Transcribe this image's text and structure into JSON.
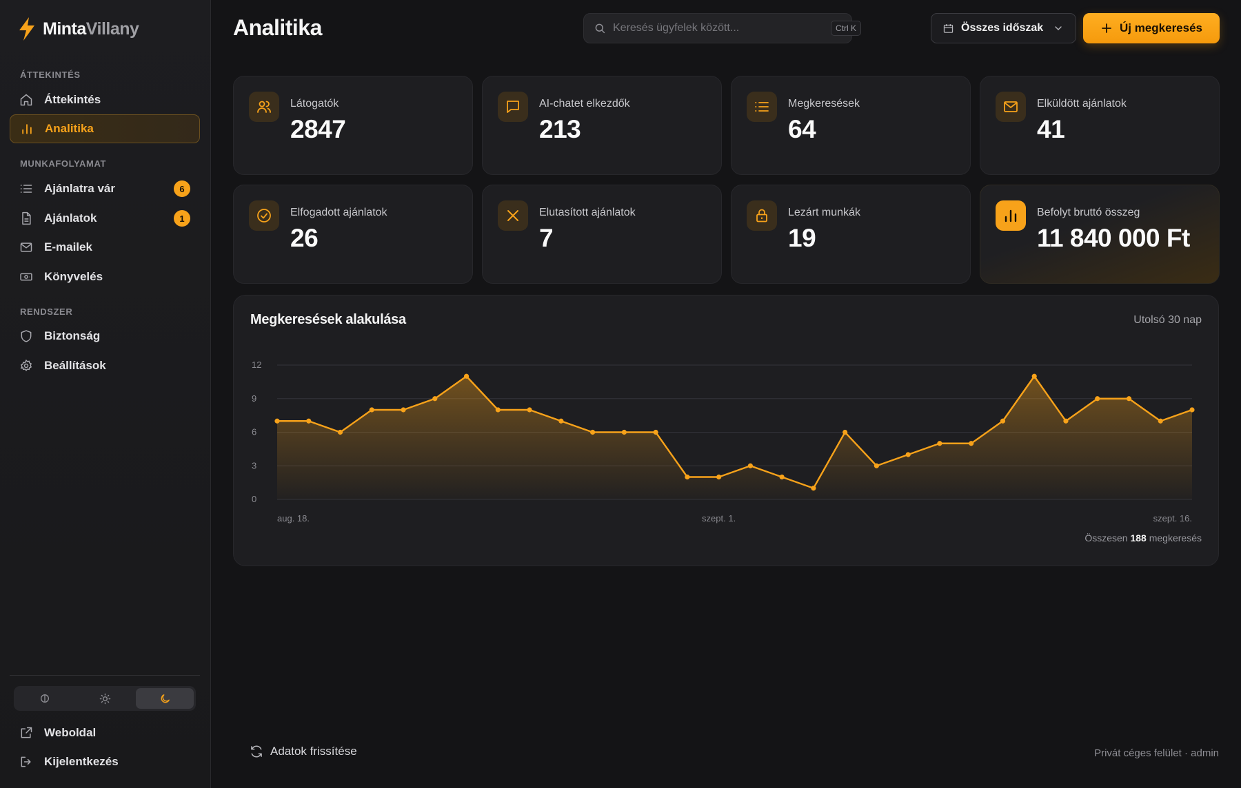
{
  "brand": {
    "part1": "Minta",
    "part2": "Villany"
  },
  "sidebar": {
    "sections": [
      {
        "title": "ÁTTEKINTÉS"
      },
      {
        "title": "MUNKAFOLYAMAT"
      },
      {
        "title": "RENDSZER"
      }
    ],
    "items": [
      {
        "label": "Áttekintés",
        "icon": "home-icon"
      },
      {
        "label": "Analitika",
        "icon": "bar-chart-icon",
        "active": true
      },
      {
        "label": "Ajánlatra vár",
        "icon": "list-icon",
        "badge": "6"
      },
      {
        "label": "Ajánlatok",
        "icon": "document-icon",
        "badge": "1"
      },
      {
        "label": "E-mailek",
        "icon": "mail-icon"
      },
      {
        "label": "Könyvelés",
        "icon": "cash-icon"
      },
      {
        "label": "Biztonság",
        "icon": "shield-icon"
      },
      {
        "label": "Beállítások",
        "icon": "gear-icon"
      }
    ],
    "theme_options": [
      "system-theme-icon",
      "sun-icon",
      "moon-icon"
    ],
    "theme_selected": "moon-icon",
    "bottom": [
      {
        "label": "Weboldal",
        "icon": "external-link-icon"
      },
      {
        "label": "Kijelentkezés",
        "icon": "logout-icon"
      }
    ]
  },
  "header": {
    "title": "Analitika",
    "search_placeholder": "Keresés ügyfelek között...",
    "search_shortcut": "Ctrl K",
    "period_label": "Összes időszak",
    "new_button": "Új megkeresés"
  },
  "stats": [
    {
      "label": "Látogatók",
      "value": "2847",
      "icon": "users-icon"
    },
    {
      "label": "AI-chatet elkezdők",
      "value": "213",
      "icon": "chat-icon"
    },
    {
      "label": "Megkeresések",
      "value": "64",
      "icon": "list-icon"
    },
    {
      "label": "Elküldött ajánlatok",
      "value": "41",
      "icon": "mail-icon"
    },
    {
      "label": "Elfogadott ajánlatok",
      "value": "26",
      "icon": "check-circle-icon"
    },
    {
      "label": "Elutasított ajánlatok",
      "value": "7",
      "icon": "x-icon"
    },
    {
      "label": "Lezárt munkák",
      "value": "19",
      "icon": "lock-icon"
    },
    {
      "label": "Befolyt bruttó összeg",
      "value": "11 840 000 Ft",
      "icon": "bar-chart-icon",
      "highlight": true
    }
  ],
  "chart_panel": {
    "title": "Megkeresések alakulása",
    "period": "Utolsó 30 nap",
    "total_prefix": "Összesen",
    "total_value": "188",
    "total_suffix": "megkeresés"
  },
  "chart_data": {
    "type": "area",
    "title": "Megkeresések alakulása",
    "x": [
      "aug. 18.",
      "aug. 19.",
      "aug. 20.",
      "aug. 21.",
      "aug. 22.",
      "aug. 23.",
      "aug. 24.",
      "aug. 25.",
      "aug. 26.",
      "aug. 27.",
      "aug. 28.",
      "aug. 29.",
      "aug. 30.",
      "aug. 31.",
      "szept. 1.",
      "szept. 2.",
      "szept. 3.",
      "szept. 4.",
      "szept. 5.",
      "szept. 6.",
      "szept. 7.",
      "szept. 8.",
      "szept. 9.",
      "szept. 10.",
      "szept. 11.",
      "szept. 12.",
      "szept. 13.",
      "szept. 14.",
      "szept. 15.",
      "szept. 16."
    ],
    "values": [
      7,
      7,
      6,
      8,
      8,
      9,
      11,
      8,
      8,
      7,
      6,
      6,
      6,
      2,
      2,
      3,
      2,
      1,
      6,
      3,
      4,
      5,
      5,
      7,
      11,
      7,
      9,
      9,
      7,
      8
    ],
    "x_tick_labels": [
      "aug. 18.",
      "szept. 1.",
      "szept. 16."
    ],
    "y_ticks": [
      0,
      3,
      6,
      9,
      12
    ],
    "ylim": [
      0,
      12
    ],
    "grid": true,
    "color": "#f7a21a"
  },
  "footer": {
    "refresh_label": "Adatok frissítése",
    "note": "Privát céges felület · admin"
  }
}
